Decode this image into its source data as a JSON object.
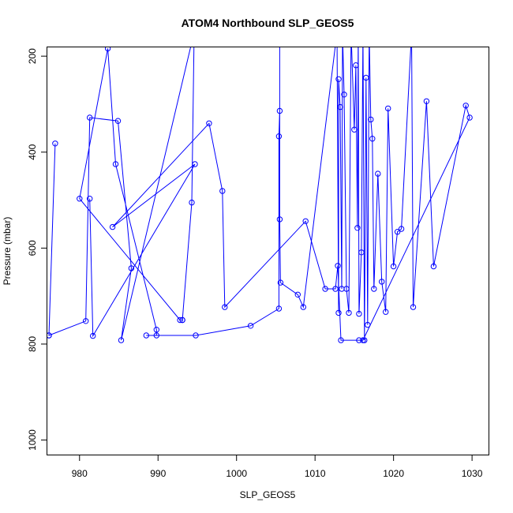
{
  "chart_data": {
    "type": "line",
    "title": "ATOM4 Northbound SLP_GEOS5",
    "xlabel": "SLP_GEOS5",
    "ylabel": "Pressure (mbar)",
    "xlim": [
      975.8,
      1032.2
    ],
    "ylim": [
      1032,
      180
    ],
    "y_reversed": true,
    "xticks": [
      980,
      990,
      1000,
      1010,
      1020,
      1030
    ],
    "yticks": [
      200,
      400,
      600,
      800,
      1000
    ],
    "grid": false,
    "marker": "open-circle",
    "color": "#0000ff",
    "series": [
      {
        "x": [
          976.1,
          976.9,
          976.1,
          980.8,
          981.3,
          984.9,
          986.6,
          985.3,
          994.6,
          994.3,
          993.1,
          993.1,
          992.8,
          980.0,
          983.6,
          984.6,
          989.8,
          989.8,
          988.5,
          994.8,
          1001.8,
          1005.4,
          1005.4,
          1005.5,
          1005.5,
          1005.5,
          1005.6,
          1007.8,
          1008.5,
          1012.8,
          1013.0,
          1013.0,
          1013.2,
          1013.4,
          1013.5,
          1013.7,
          1014.0,
          1014.3,
          1014.6,
          1015.0,
          1015.2,
          1015.4,
          1015.5,
          1015.6,
          1015.9,
          1016.1,
          1016.3,
          1016.5,
          1016.7,
          1016.9,
          1017.1,
          1017.3,
          1017.5,
          1018.0,
          1018.5,
          1019.0,
          1019.3,
          1020.0,
          1020.5,
          1021.0,
          1022.3,
          1022.5,
          1024.2,
          1025.1,
          1029.2,
          1029.7,
          1016.1,
          1015.6,
          1013.3,
          1012.9,
          1012.6,
          1011.3,
          1008.8,
          998.5,
          998.2,
          996.5,
          984.2,
          994.7,
          981.7,
          981.3
        ],
        "y": [
          782,
          382,
          782,
          752,
          328,
          335,
          642,
          792,
          150,
          505,
          750,
          750,
          750,
          497,
          184,
          425,
          770,
          782,
          782,
          782,
          762,
          726,
          367,
          314,
          150,
          540,
          672,
          697,
          723,
          150,
          735,
          248,
          306,
          685,
          150,
          280,
          685,
          735,
          150,
          353,
          219,
          558,
          150,
          737,
          609,
          150,
          792,
          245,
          760,
          150,
          332,
          372,
          685,
          445,
          670,
          733,
          309,
          638,
          566,
          560,
          150,
          723,
          294,
          638,
          303,
          328,
          792,
          792,
          792,
          637,
          685,
          685,
          544,
          723,
          481,
          340,
          556,
          425,
          783,
          497
        ]
      }
    ]
  }
}
